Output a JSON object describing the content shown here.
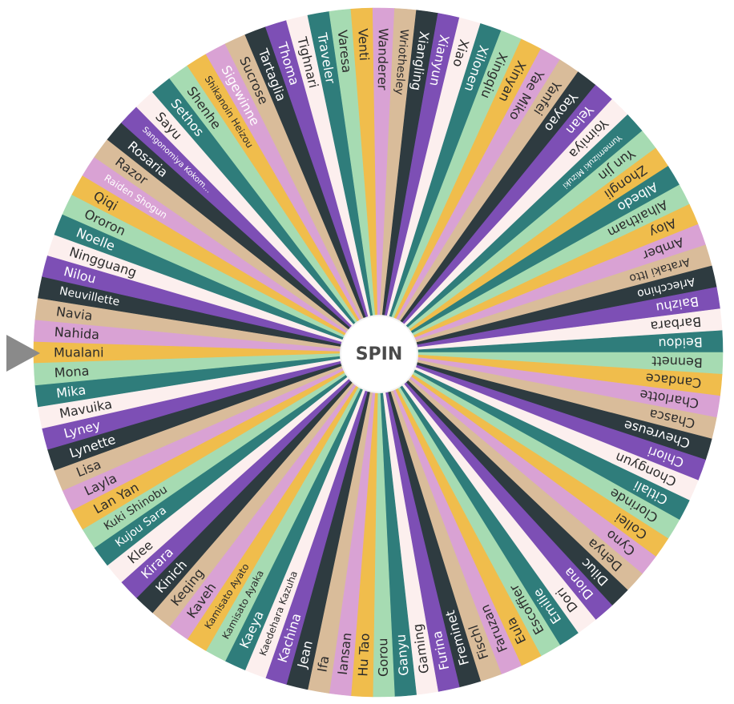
{
  "spin_label": "SPIN",
  "palette": [
    "#7d4fb5",
    "#2e3b40",
    "#d9bc9a",
    "#d9a2d4",
    "#f0bd4c",
    "#a6dbb2",
    "#2f7d7b",
    "#fcefee"
  ],
  "names": [
    "Mualani",
    "Nahida",
    "Navia",
    "Neuvillette",
    "Nilou",
    "Ningguang",
    "Noelle",
    "Ororon",
    "Qiqi",
    "Raiden Shogun",
    "Razor",
    "Rosaria",
    "Sangonomiya Kokom...",
    "Sayu",
    "Sethos",
    "Shenhe",
    "Shikanoin Heizou",
    "Sigewinne",
    "Sucrose",
    "Tartaglia",
    "Thoma",
    "Tighnari",
    "Traveler",
    "Varesa",
    "Venti",
    "Wanderer",
    "Wriothesley",
    "Xiangling",
    "Xianyun",
    "Xiao",
    "Xilonen",
    "Xingqiu",
    "Xinyan",
    "Yae Miko",
    "Yanfei",
    "Yaoyao",
    "Yelan",
    "Yoimiya",
    "Yumemizuki Mizuki",
    "Yun Jin",
    "Zhongli",
    "Albedo",
    "Alhaitham",
    "Aloy",
    "Amber",
    "Arataki Itto",
    "Arlecchino",
    "Baizhu",
    "Barbara",
    "Beidou",
    "Bennett",
    "Candace",
    "Charlotte",
    "Chasca",
    "Chevreuse",
    "Chiori",
    "Chongyun",
    "Citlali",
    "Clorinde",
    "Collei",
    "Cyno",
    "Dehya",
    "Diluc",
    "Diona",
    "Dori",
    "Emilie",
    "Escoffier",
    "Eula",
    "Faruzan",
    "Fischl",
    "Freminet",
    "Furina",
    "Gaming",
    "Ganyu",
    "Gorou",
    "Hu Tao",
    "Iansan",
    "Ifa",
    "Jean",
    "Kachina",
    "Kaedehara Kazuha",
    "Kaeya",
    "Kamisato Ayaka",
    "Kamisato Ayato",
    "Kaveh",
    "Keqing",
    "Kinich",
    "Kirara",
    "Klee",
    "Kujou Sara",
    "Kuki Shinobu",
    "Lan Yan",
    "Layla",
    "Lisa",
    "Lynette",
    "Lyney",
    "Mavuika",
    "Mika",
    "Mona"
  ],
  "segments": [
    {
      "c": 4,
      "t": 1
    },
    {
      "c": 3,
      "t": 1
    },
    {
      "c": 2,
      "t": 1
    },
    {
      "c": 1,
      "t": 0
    },
    {
      "c": 0,
      "t": 0
    },
    {
      "c": 7,
      "t": 1
    },
    {
      "c": 6,
      "t": 0
    },
    {
      "c": 5,
      "t": 1
    },
    {
      "c": 4,
      "t": 1
    },
    {
      "c": 3,
      "t": 0
    },
    {
      "c": 2,
      "t": 1
    },
    {
      "c": 1,
      "t": 0
    },
    {
      "c": 0,
      "t": 0
    },
    {
      "c": 7,
      "t": 1
    },
    {
      "c": 6,
      "t": 0
    },
    {
      "c": 5,
      "t": 1
    },
    {
      "c": 4,
      "t": 1
    },
    {
      "c": 3,
      "t": 0
    },
    {
      "c": 2,
      "t": 1
    },
    {
      "c": 1,
      "t": 0
    },
    {
      "c": 0,
      "t": 0
    },
    {
      "c": 7,
      "t": 1
    },
    {
      "c": 6,
      "t": 0
    },
    {
      "c": 5,
      "t": 1
    },
    {
      "c": 4,
      "t": 1
    },
    {
      "c": 3,
      "t": 1
    },
    {
      "c": 2,
      "t": 1
    },
    {
      "c": 1,
      "t": 0
    },
    {
      "c": 0,
      "t": 0
    },
    {
      "c": 7,
      "t": 1
    },
    {
      "c": 6,
      "t": 0
    },
    {
      "c": 5,
      "t": 1
    },
    {
      "c": 4,
      "t": 1
    },
    {
      "c": 3,
      "t": 1
    },
    {
      "c": 2,
      "t": 1
    },
    {
      "c": 1,
      "t": 0
    },
    {
      "c": 0,
      "t": 0
    },
    {
      "c": 7,
      "t": 1
    },
    {
      "c": 6,
      "t": 0
    },
    {
      "c": 5,
      "t": 1
    },
    {
      "c": 4,
      "t": 1
    },
    {
      "c": 6,
      "t": 0
    },
    {
      "c": 5,
      "t": 1
    },
    {
      "c": 4,
      "t": 1
    },
    {
      "c": 3,
      "t": 1
    },
    {
      "c": 2,
      "t": 1
    },
    {
      "c": 1,
      "t": 0
    },
    {
      "c": 0,
      "t": 0
    },
    {
      "c": 7,
      "t": 1
    },
    {
      "c": 6,
      "t": 0
    },
    {
      "c": 5,
      "t": 1
    },
    {
      "c": 4,
      "t": 1
    },
    {
      "c": 3,
      "t": 1
    },
    {
      "c": 2,
      "t": 1
    },
    {
      "c": 1,
      "t": 0
    },
    {
      "c": 0,
      "t": 0
    },
    {
      "c": 7,
      "t": 1
    },
    {
      "c": 6,
      "t": 0
    },
    {
      "c": 5,
      "t": 1
    },
    {
      "c": 4,
      "t": 1
    },
    {
      "c": 3,
      "t": 1
    },
    {
      "c": 2,
      "t": 1
    },
    {
      "c": 1,
      "t": 0
    },
    {
      "c": 0,
      "t": 0
    },
    {
      "c": 7,
      "t": 1
    },
    {
      "c": 6,
      "t": 0
    },
    {
      "c": 5,
      "t": 1
    },
    {
      "c": 4,
      "t": 1
    },
    {
      "c": 3,
      "t": 1
    },
    {
      "c": 2,
      "t": 1
    },
    {
      "c": 1,
      "t": 0
    },
    {
      "c": 0,
      "t": 0
    },
    {
      "c": 7,
      "t": 1
    },
    {
      "c": 6,
      "t": 0
    },
    {
      "c": 5,
      "t": 1
    },
    {
      "c": 4,
      "t": 1
    },
    {
      "c": 3,
      "t": 1
    },
    {
      "c": 2,
      "t": 1
    },
    {
      "c": 1,
      "t": 0
    },
    {
      "c": 0,
      "t": 0
    },
    {
      "c": 7,
      "t": 1
    },
    {
      "c": 6,
      "t": 0
    },
    {
      "c": 5,
      "t": 1
    },
    {
      "c": 4,
      "t": 1
    },
    {
      "c": 3,
      "t": 1
    },
    {
      "c": 2,
      "t": 1
    },
    {
      "c": 1,
      "t": 0
    },
    {
      "c": 0,
      "t": 0
    },
    {
      "c": 7,
      "t": 1
    },
    {
      "c": 6,
      "t": 0
    },
    {
      "c": 5,
      "t": 1
    },
    {
      "c": 4,
      "t": 1
    },
    {
      "c": 3,
      "t": 1
    },
    {
      "c": 2,
      "t": 1
    },
    {
      "c": 1,
      "t": 0
    },
    {
      "c": 0,
      "t": 0
    },
    {
      "c": 7,
      "t": 1
    },
    {
      "c": 6,
      "t": 0
    },
    {
      "c": 5,
      "t": 1
    }
  ]
}
